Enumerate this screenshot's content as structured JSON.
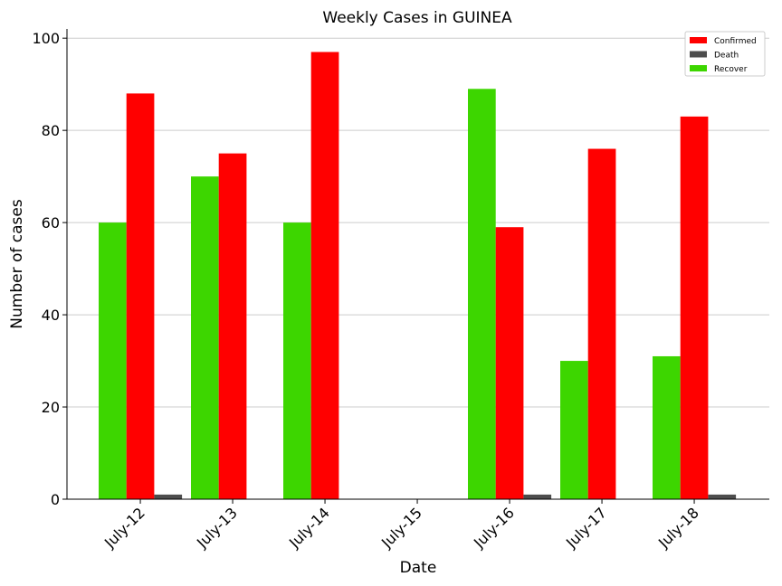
{
  "chart_data": {
    "type": "bar",
    "title": "Weekly Cases in GUINEA",
    "xlabel": "Date",
    "ylabel": "Number of cases",
    "categories": [
      "July-12",
      "July-13",
      "July-14",
      "July-15",
      "July-16",
      "July-17",
      "July-18"
    ],
    "series": [
      {
        "name": "Recover",
        "color": "#3dd600",
        "values": [
          60,
          70,
          60,
          0,
          89,
          30,
          31
        ]
      },
      {
        "name": "Confirmed",
        "color": "#ff0000",
        "values": [
          88,
          75,
          97,
          0,
          59,
          76,
          83
        ]
      },
      {
        "name": "Death",
        "color": "#4d4d4d",
        "values": [
          1,
          0,
          0,
          0,
          1,
          0,
          1
        ]
      }
    ],
    "legend_order": [
      "Confirmed",
      "Death",
      "Recover"
    ],
    "ylim": [
      0,
      102
    ],
    "yticks": [
      0,
      20,
      40,
      60,
      80,
      100
    ],
    "grid": "horizontal",
    "legend_position": "top-right"
  }
}
